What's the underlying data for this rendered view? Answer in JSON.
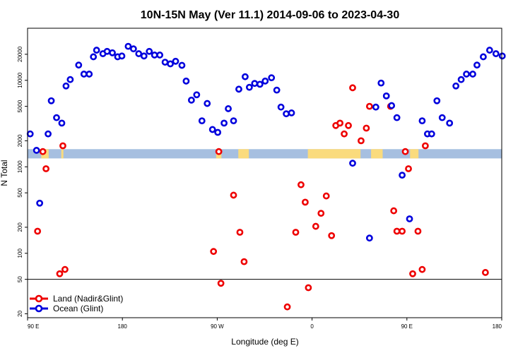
{
  "chart_data": {
    "type": "scatter",
    "title": "10N-15N May (Ver 11.1)   2014-09-06 to 2023-04-30",
    "xlabel": "Longitude (deg E)",
    "ylabel": "N Total",
    "x_scale": "linear",
    "y_scale": "log",
    "xlim": [
      90,
      540
    ],
    "ylim": [
      18,
      40000
    ],
    "x_ticks": [
      {
        "value": 90,
        "label": "90 E"
      },
      {
        "value": 180,
        "label": "180"
      },
      {
        "value": 270,
        "label": "90 W"
      },
      {
        "value": 360,
        "label": "0"
      },
      {
        "value": 450,
        "label": "90 E"
      },
      {
        "value": 540,
        "label": "180"
      }
    ],
    "y_ticks": [
      {
        "value": 20,
        "label": "20"
      },
      {
        "value": 50,
        "label": "50"
      },
      {
        "value": 100,
        "label": "100"
      },
      {
        "value": 200,
        "label": "200"
      },
      {
        "value": 500,
        "label": "500"
      },
      {
        "value": 1000,
        "label": "1000"
      },
      {
        "value": 2000,
        "label": "2000"
      },
      {
        "value": 5000,
        "label": "5000"
      },
      {
        "value": 10000,
        "label": "10000"
      },
      {
        "value": 20000,
        "label": "20000"
      }
    ],
    "reference_line_y": 50,
    "legend_position": "bottom-left",
    "colors": {
      "land": "#ee0000",
      "ocean": "#0000dd",
      "strip_ocean": "#a6bfe0",
      "strip_land": "#fadb7d"
    },
    "series": [
      {
        "name": "Land (Nadir&Glint)",
        "color": "#ee0000",
        "x": [
          99.5,
          104.5,
          107.5,
          120.5,
          123.5,
          125.5,
          266.5,
          271.5,
          273.5,
          285.5,
          291.5,
          295.5,
          336.5,
          344.5,
          349.5,
          353.5,
          356.5,
          363.5,
          368.5,
          373.5,
          378.5,
          382.5,
          386.5,
          390.5,
          394.5,
          398.5,
          406.5,
          411.5,
          414.5,
          524.5,
          434.5,
          437.5,
          440.5,
          445.5,
          448.5,
          451.5,
          455.5,
          464.5,
          467.5,
          460.5
        ],
        "y": [
          180,
          1500,
          950,
          58,
          1750,
          65,
          105,
          1500,
          45,
          470,
          175,
          80,
          24,
          175,
          620,
          390,
          40,
          205,
          290,
          460,
          160,
          3000,
          3200,
          2400,
          3000,
          8200,
          2000,
          2800,
          5000,
          60,
          5000,
          310,
          180,
          180,
          1500,
          950,
          58,
          65,
          1750,
          180
        ]
      },
      {
        "name": "Ocean (Glint)",
        "color": "#0000dd",
        "x": [
          92.5,
          98.5,
          101.5,
          109.5,
          112.5,
          117.5,
          122.5,
          126.5,
          130.5,
          138.5,
          143.5,
          148.5,
          152.5,
          155.5,
          161.5,
          165.5,
          170.5,
          175.5,
          179.5,
          185.5,
          190.5,
          195.5,
          200.5,
          205.5,
          210.5,
          215.5,
          220.5,
          225.5,
          230.5,
          236.5,
          240.5,
          245.5,
          250.5,
          255.5,
          260.5,
          265.5,
          270.5,
          276.5,
          280.5,
          285.5,
          290.5,
          296.5,
          300.5,
          305.5,
          310.5,
          315.5,
          321.5,
          326.5,
          330.5,
          335.5,
          340.5,
          398.5,
          414.5,
          420.5,
          425.5,
          430.5,
          435.5,
          440.5,
          445.5,
          452.5,
          464.5,
          469.5,
          473.5,
          478.5,
          483.5,
          490.5,
          496.5,
          501.5,
          506.5,
          512.5,
          516.5,
          522.5,
          528.5,
          534.5,
          540.5
        ],
        "y": [
          2400,
          1550,
          380,
          2400,
          5800,
          3700,
          3200,
          8600,
          10200,
          15000,
          11800,
          11800,
          18700,
          22300,
          20300,
          21600,
          20800,
          18700,
          19100,
          24700,
          23100,
          20300,
          19100,
          21600,
          19600,
          19600,
          16200,
          15500,
          16600,
          14900,
          9800,
          5900,
          6800,
          3400,
          5400,
          2700,
          2500,
          3200,
          4700,
          3400,
          7900,
          11000,
          8300,
          9200,
          9000,
          9800,
          10700,
          7700,
          4900,
          4100,
          4200,
          1100,
          150,
          4900,
          9300,
          6600,
          5100,
          3700,
          800,
          250,
          3400,
          2400,
          2400,
          5800,
          3700,
          3200,
          8600,
          10200,
          11800,
          11800,
          15000,
          18700,
          22300,
          20300,
          19100
        ]
      }
    ],
    "coverage_strip": {
      "y_range": [
        1250,
        1600
      ],
      "land_segments_lon": [
        [
          103,
          110
        ],
        [
          122,
          124
        ],
        [
          269,
          274
        ],
        [
          290,
          300
        ],
        [
          356,
          406
        ],
        [
          416,
          427
        ],
        [
          453,
          461
        ]
      ]
    }
  }
}
